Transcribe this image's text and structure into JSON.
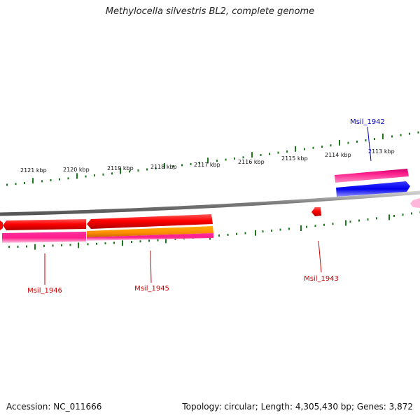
{
  "title": "Methylocella silvestris BL2, complete genome",
  "footer": {
    "accession": "Accession: NC_011666",
    "stats": "Topology: circular; Length: 4,305,430 bp; Genes: 3,872"
  },
  "colors": {
    "forward_cds": "#ff1493",
    "reverse_cds": "#ff0000",
    "forward_gene": "#0000ee",
    "reverse_gene": "#ff8c00",
    "backbone": "#7f7f7f",
    "ticks": "#1a7a1a",
    "label_forward": "#0000cc",
    "label_reverse": "#cc0000"
  },
  "ticks": [
    {
      "label": "2121 kbp"
    },
    {
      "label": "2120 kbp"
    },
    {
      "label": "2119 kbp"
    },
    {
      "label": "2118 kbp"
    },
    {
      "label": "2117 kbp"
    },
    {
      "label": "2116 kbp"
    },
    {
      "label": "2115 kbp"
    },
    {
      "label": "2114 kbp"
    },
    {
      "label": "2113 kbp"
    }
  ],
  "features": [
    {
      "name": "Msil_1942"
    },
    {
      "name": "Msil_1943"
    },
    {
      "name": "Msil_1945"
    },
    {
      "name": "Msil_1946"
    }
  ]
}
